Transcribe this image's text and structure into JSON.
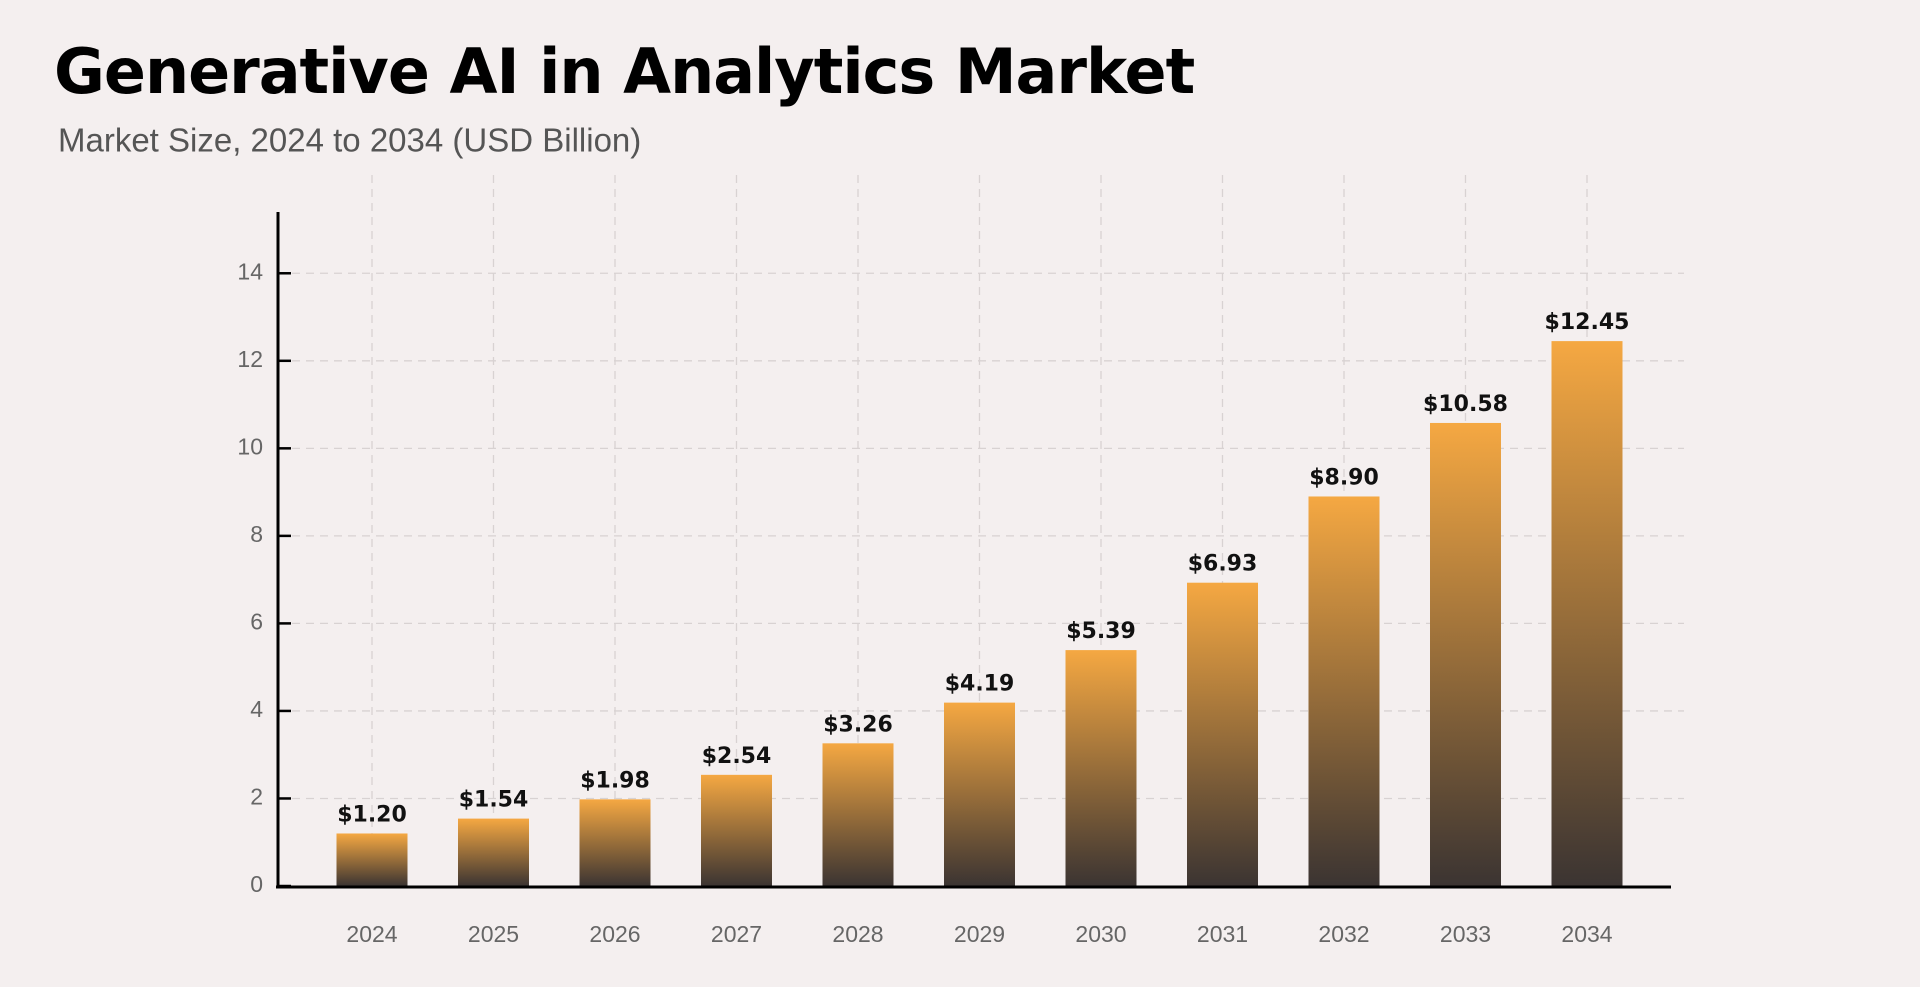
{
  "chart_data": {
    "type": "bar",
    "title": "Generative AI in Analytics Market",
    "subtitle": "Market Size, 2024 to 2034 (USD Billion)",
    "categories": [
      "2024",
      "2025",
      "2026",
      "2027",
      "2028",
      "2029",
      "2030",
      "2031",
      "2032",
      "2033",
      "2034"
    ],
    "values": [
      1.2,
      1.54,
      1.98,
      2.54,
      3.26,
      4.19,
      5.39,
      6.93,
      8.9,
      10.58,
      12.45
    ],
    "value_labels": [
      "$1.20",
      "$1.54",
      "$1.98",
      "$2.54",
      "$3.26",
      "$4.19",
      "$5.39",
      "$6.93",
      "$8.90",
      "$10.58",
      "$12.45"
    ],
    "color": "#f5a842",
    "ylim": [
      0,
      15.4
    ],
    "yticks": [
      0,
      2,
      4,
      6,
      8,
      10,
      12,
      14
    ],
    "grid": true
  }
}
